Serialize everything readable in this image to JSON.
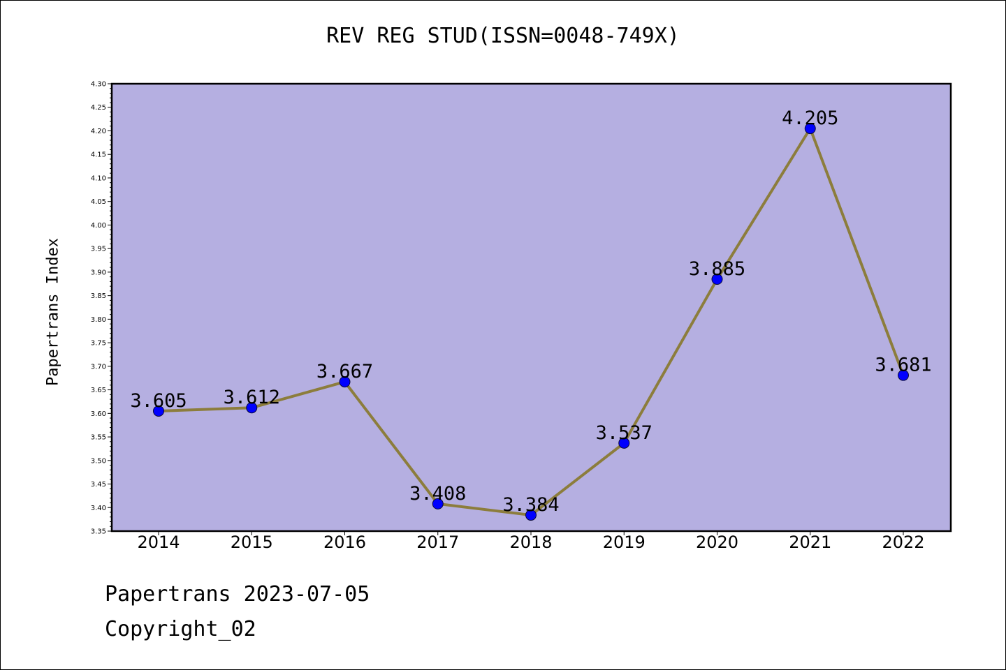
{
  "figure": {
    "title": "REV REG STUD(ISSN=0048-749X)",
    "footer_line1": "Papertrans 2023-07-05",
    "footer_line2": "Copyright_02"
  },
  "chart_data": {
    "type": "line",
    "title": "REV REG STUD(ISSN=0048-749X)",
    "xlabel": "",
    "ylabel": "Papertrans Index",
    "categories": [
      "2014",
      "2015",
      "2016",
      "2017",
      "2018",
      "2019",
      "2020",
      "2021",
      "2022"
    ],
    "series": [
      {
        "values": [
          3.605,
          3.612,
          3.667,
          3.408,
          3.384,
          3.537,
          3.885,
          4.205,
          3.681
        ],
        "labels": [
          "3.605",
          "3.612",
          "3.667",
          "3.408",
          "3.384",
          "3.537",
          "3.885",
          "4.205",
          "3.681"
        ]
      }
    ],
    "ylim": [
      3.35,
      4.3
    ],
    "yticks": [
      "3.35",
      "3.40",
      "3.45",
      "3.50",
      "3.55",
      "3.60",
      "3.65",
      "3.70",
      "3.75",
      "3.80",
      "3.85",
      "3.90",
      "3.95",
      "4.00",
      "4.05",
      "4.10",
      "4.15",
      "4.20",
      "4.25",
      "4.30"
    ],
    "grid": false,
    "legend": "none",
    "colors": {
      "plot_background": "#b5afe1",
      "line": "#8c7d3c",
      "marker": "#0000ff"
    }
  }
}
